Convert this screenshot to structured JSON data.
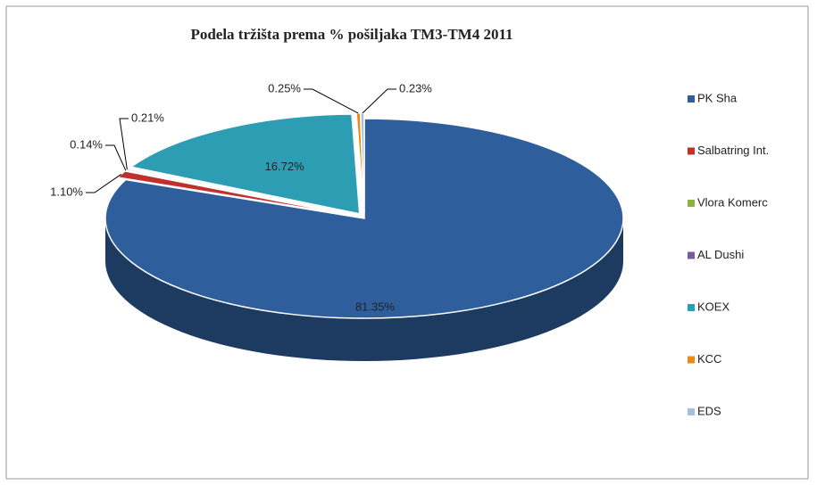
{
  "chart_data": {
    "type": "pie",
    "title": "Podela tržišta prema % pošiljaka TM3-TM4 2011",
    "categories": [
      "PK Sha",
      "Salbatring Int.",
      "Vlora Komerc",
      "AL Dushi",
      "KOEX",
      "KCC",
      "EDS"
    ],
    "values": [
      81.35,
      1.1,
      0.14,
      0.21,
      16.72,
      0.25,
      0.23
    ],
    "value_labels": [
      "81.35%",
      "1.10%",
      "0.14%",
      "0.21%",
      "16.72%",
      "0.25%",
      "0.23%"
    ],
    "colors": [
      "#2f5e9c",
      "#c0302c",
      "#8bb43c",
      "#7a5a9e",
      "#2d9db3",
      "#e88a1a",
      "#a6bddc"
    ],
    "legend": "right"
  }
}
